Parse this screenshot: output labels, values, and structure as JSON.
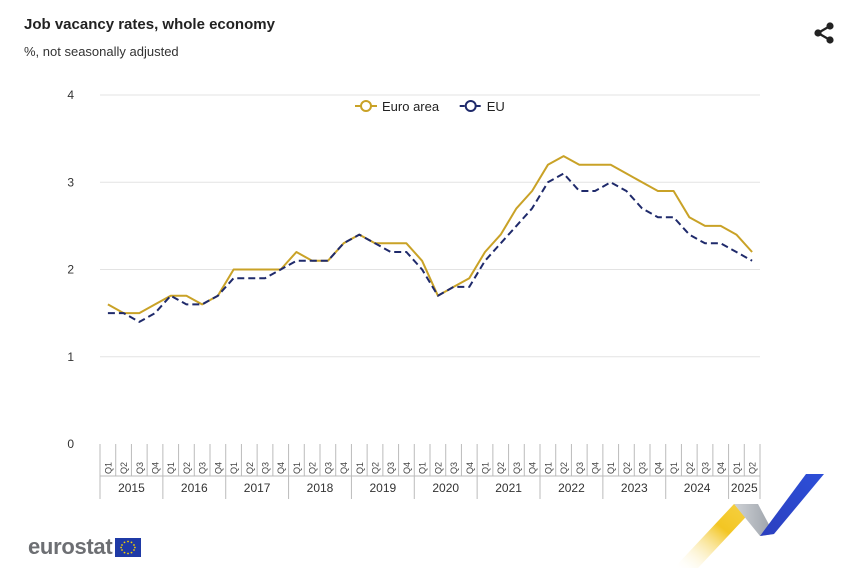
{
  "header": {
    "title": "Job vacancy rates, whole economy",
    "subtitle": "%, not seasonally adjusted"
  },
  "logo": {
    "text": "eurostat",
    "flag_icon": "eu-flag-icon"
  },
  "share_icon": "share-icon",
  "chart_data": {
    "type": "line",
    "title": "Job vacancy rates, whole economy",
    "subtitle": "%, not seasonally adjusted",
    "xlabel": "",
    "ylabel": "",
    "ylim": [
      0,
      4
    ],
    "yticks": [
      0,
      1,
      2,
      3,
      4
    ],
    "grid": true,
    "legend_position": "top-center",
    "quarter_labels": [
      "Q1",
      "Q2",
      "Q3",
      "Q4"
    ],
    "years": [
      "2015",
      "2016",
      "2017",
      "2018",
      "2019",
      "2020",
      "2021",
      "2022",
      "2023",
      "2024",
      "2025"
    ],
    "x": [
      "2015-Q1",
      "2015-Q2",
      "2015-Q3",
      "2015-Q4",
      "2016-Q1",
      "2016-Q2",
      "2016-Q3",
      "2016-Q4",
      "2017-Q1",
      "2017-Q2",
      "2017-Q3",
      "2017-Q4",
      "2018-Q1",
      "2018-Q2",
      "2018-Q3",
      "2018-Q4",
      "2019-Q1",
      "2019-Q2",
      "2019-Q3",
      "2019-Q4",
      "2020-Q1",
      "2020-Q2",
      "2020-Q3",
      "2020-Q4",
      "2021-Q1",
      "2021-Q2",
      "2021-Q3",
      "2021-Q4",
      "2022-Q1",
      "2022-Q2",
      "2022-Q3",
      "2022-Q4",
      "2023-Q1",
      "2023-Q2",
      "2023-Q3",
      "2023-Q4",
      "2024-Q1",
      "2024-Q2",
      "2024-Q3",
      "2024-Q4",
      "2025-Q1",
      "2025-Q2"
    ],
    "series": [
      {
        "name": "Euro area",
        "color": "#c9a227",
        "dash": "solid",
        "values": [
          1.6,
          1.5,
          1.5,
          1.6,
          1.7,
          1.7,
          1.6,
          1.7,
          2.0,
          2.0,
          2.0,
          2.0,
          2.2,
          2.1,
          2.1,
          2.3,
          2.4,
          2.3,
          2.3,
          2.3,
          2.1,
          1.7,
          1.8,
          1.9,
          2.2,
          2.4,
          2.7,
          2.9,
          3.2,
          3.3,
          3.2,
          3.2,
          3.2,
          3.1,
          3.0,
          2.9,
          2.9,
          2.6,
          2.5,
          2.5,
          2.4,
          2.2
        ]
      },
      {
        "name": "EU",
        "color": "#1f2a6b",
        "dash": "dashed",
        "values": [
          1.5,
          1.5,
          1.4,
          1.5,
          1.7,
          1.6,
          1.6,
          1.7,
          1.9,
          1.9,
          1.9,
          2.0,
          2.1,
          2.1,
          2.1,
          2.3,
          2.4,
          2.3,
          2.2,
          2.2,
          2.0,
          1.7,
          1.8,
          1.8,
          2.1,
          2.3,
          2.5,
          2.7,
          3.0,
          3.1,
          2.9,
          2.9,
          3.0,
          2.9,
          2.7,
          2.6,
          2.6,
          2.4,
          2.3,
          2.3,
          2.2,
          2.1
        ]
      }
    ]
  }
}
